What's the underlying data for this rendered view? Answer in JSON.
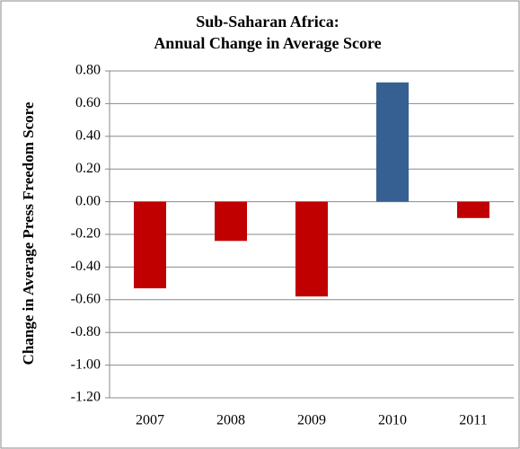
{
  "chart_data": {
    "type": "bar",
    "title": [
      "Sub-Saharan Africa:",
      "Annual Change in Average Score"
    ],
    "y_label": "Change in Average Press Freedom Score",
    "categories": [
      "2007",
      "2008",
      "2009",
      "2010",
      "2011"
    ],
    "values": [
      -0.53,
      -0.24,
      -0.58,
      0.73,
      -0.1
    ],
    "colors": [
      "#c00000",
      "#c00000",
      "#c00000",
      "#376092",
      "#c00000"
    ],
    "ylim": [
      -1.2,
      0.8
    ],
    "yticks": [
      {
        "value": -1.2,
        "label": "-1.20"
      },
      {
        "value": -1.0,
        "label": "-1.00"
      },
      {
        "value": -0.8,
        "label": "-0.80"
      },
      {
        "value": -0.6,
        "label": "-0.60"
      },
      {
        "value": -0.4,
        "label": "-0.40"
      },
      {
        "value": -0.2,
        "label": "-0.20"
      },
      {
        "value": 0,
        "label": "0.00"
      },
      {
        "value": 0.2,
        "label": "0.20"
      },
      {
        "value": 0.4,
        "label": "0.40"
      },
      {
        "value": 0.6,
        "label": "0.60"
      },
      {
        "value": 0.8,
        "label": "0.80"
      }
    ],
    "grid": true
  }
}
